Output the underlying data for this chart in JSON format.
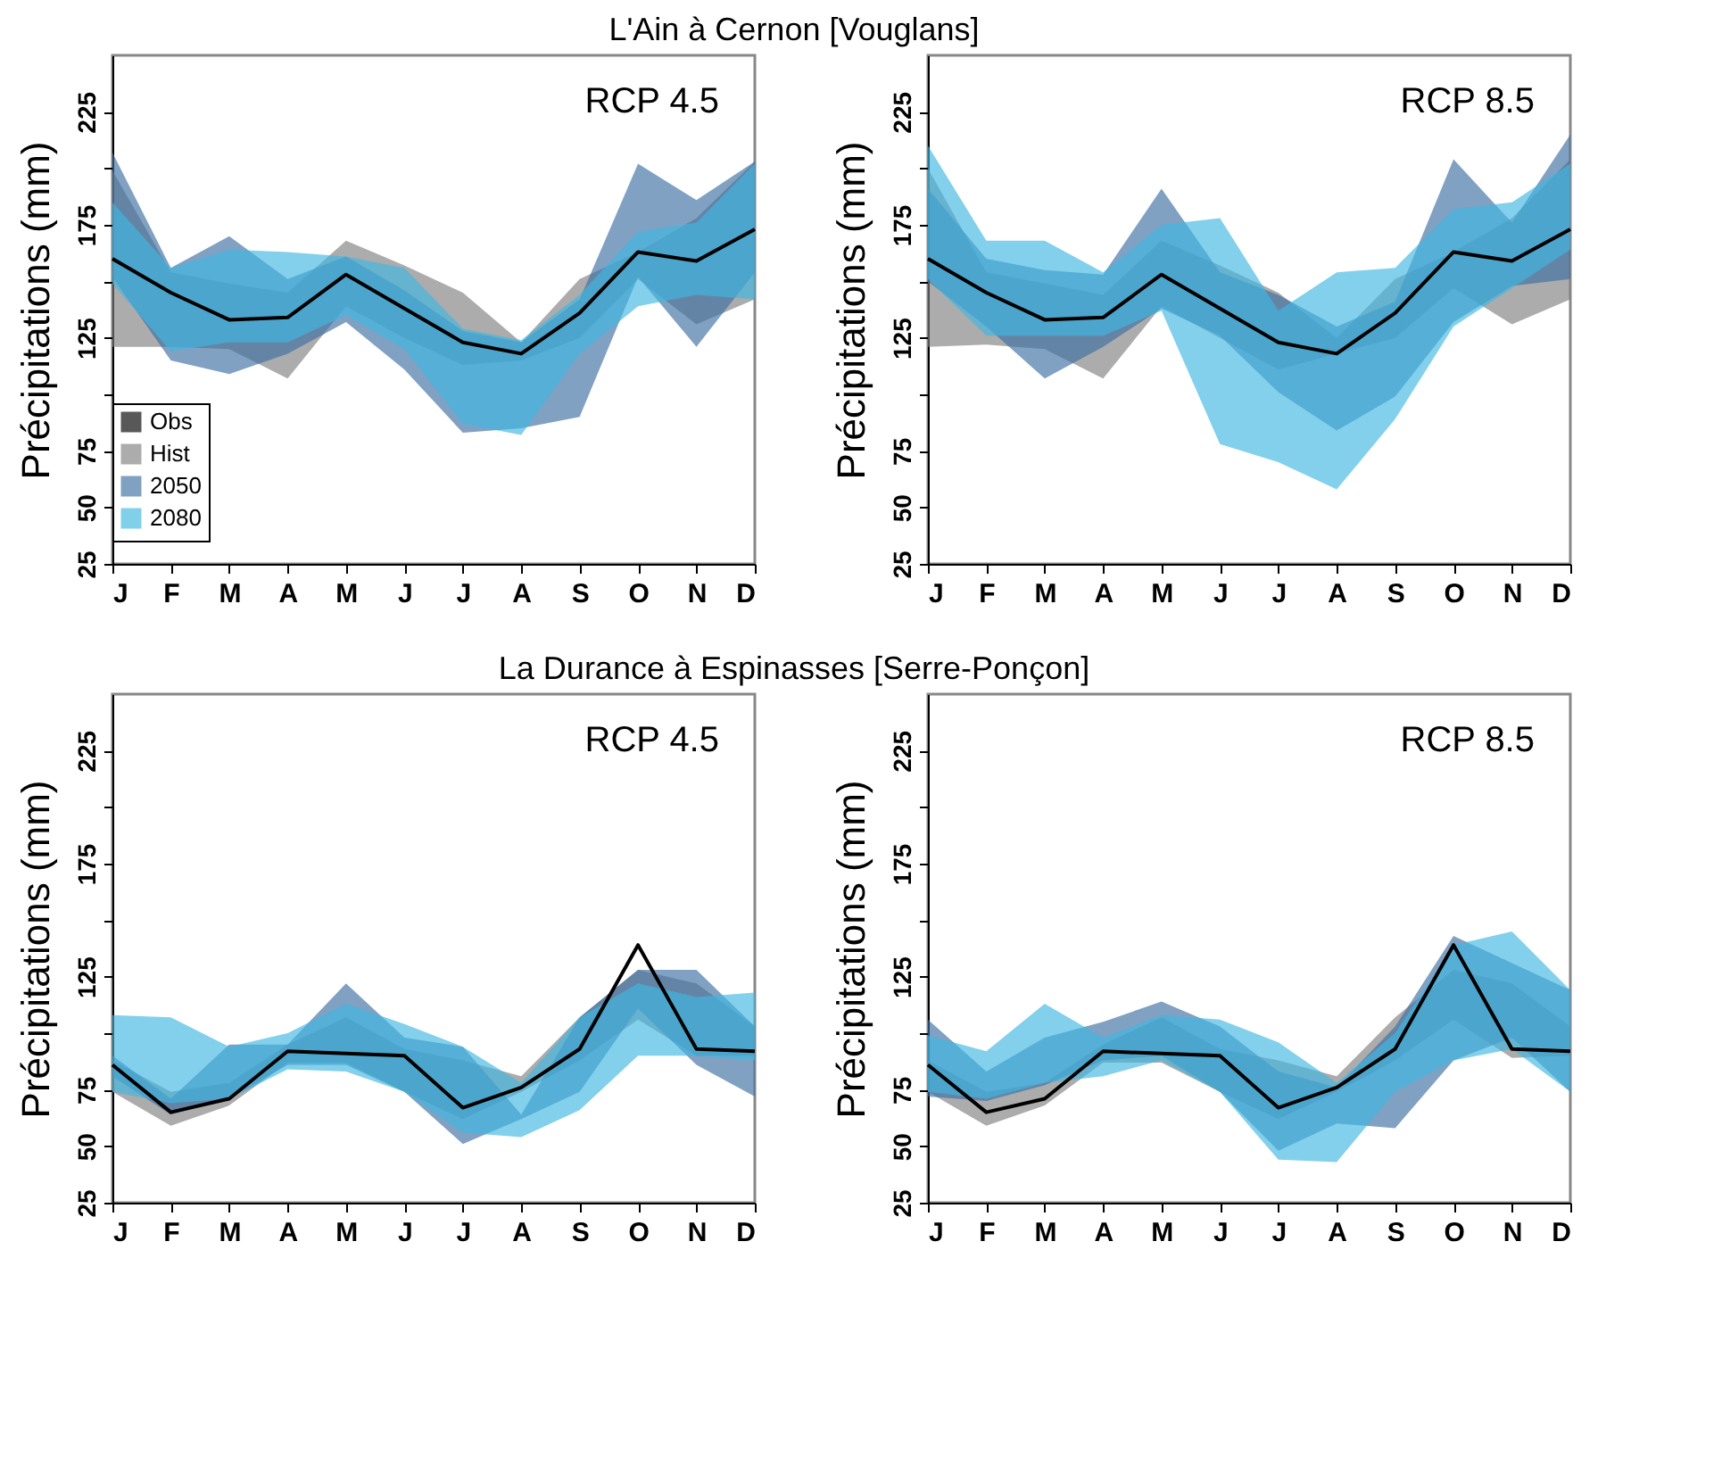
{
  "chart_data": [
    {
      "type": "line",
      "title": "L'Ain à Cernon [Vouglans]",
      "ylabel": "Précipitations (mm)",
      "categories": [
        "J",
        "F",
        "M",
        "A",
        "M",
        "J",
        "J",
        "A",
        "S",
        "O",
        "N",
        "D"
      ],
      "ylim": [
        25,
        250
      ],
      "yticks": [
        25,
        50,
        75,
        {
          "value": 100,
          "label": null
        },
        125,
        {
          "value": 150,
          "label": null
        },
        175,
        {
          "value": 200,
          "label": null
        },
        225
      ],
      "annotations": [
        "RCP 4.5"
      ],
      "legend": "bottom left",
      "series": [
        {
          "name": "Obs",
          "color": "#000000",
          "values": [
            160,
            145,
            133,
            134,
            153,
            138,
            123,
            118,
            136,
            163,
            159,
            173
          ]
        },
        {
          "name": "Hist",
          "type": "area",
          "color": "#808080",
          "values": [
            null,
            null,
            null,
            null,
            null,
            null,
            null,
            null,
            null,
            null,
            null,
            null
          ],
          "lower": [
            121,
            121,
            120,
            107,
            139,
            125,
            113,
            115,
            125,
            151,
            131,
            142
          ],
          "upper": [
            199,
            154,
            149,
            145,
            168,
            157,
            145,
            123,
            151,
            163,
            178,
            203
          ]
        },
        {
          "name": "2050",
          "type": "area",
          "color": "#3e6fa3",
          "values": [
            null,
            null,
            null,
            null,
            null,
            null,
            null,
            null,
            null,
            null,
            null,
            null
          ],
          "lower": [
            152,
            115,
            109,
            118,
            132,
            111,
            83,
            85,
            90,
            152,
            121,
            154
          ],
          "upper": [
            207,
            156,
            170,
            151,
            161,
            146,
            128,
            123,
            142,
            202,
            186,
            203
          ]
        },
        {
          "name": "2080",
          "type": "area",
          "color": "#3fb7e0",
          "values": [
            null,
            null,
            null,
            null,
            null,
            null,
            null,
            null,
            null,
            null,
            null,
            null
          ],
          "lower": [
            149,
            119,
            123,
            123,
            135,
            120,
            87,
            82,
            118,
            139,
            144,
            142
          ],
          "upper": [
            185,
            156,
            164,
            163,
            161,
            156,
            129,
            124,
            144,
            172,
            176,
            202
          ]
        }
      ]
    },
    {
      "type": "line",
      "ylabel": "Précipitations (mm)",
      "categories": [
        "J",
        "F",
        "M",
        "A",
        "M",
        "J",
        "J",
        "A",
        "S",
        "O",
        "N",
        "D"
      ],
      "ylim": [
        25,
        250
      ],
      "yticks": [
        25,
        50,
        75,
        {
          "value": 100,
          "label": null
        },
        125,
        {
          "value": 150,
          "label": null
        },
        175,
        {
          "value": 200,
          "label": null
        },
        225
      ],
      "annotations": [
        "RCP 8.5"
      ],
      "series": [
        {
          "color": "#000000",
          "values": [
            160,
            145,
            133,
            134,
            153,
            138,
            123,
            118,
            136,
            163,
            159,
            173
          ]
        },
        {
          "type": "area",
          "color": "#808080",
          "values": [
            null,
            null,
            null,
            null,
            null,
            null,
            null,
            null,
            null,
            null,
            null,
            null
          ],
          "lower": [
            121,
            122,
            120,
            107,
            139,
            125,
            111,
            118,
            125,
            147,
            131,
            142
          ],
          "upper": [
            200,
            154,
            149,
            144,
            168,
            157,
            145,
            125,
            151,
            163,
            178,
            204
          ]
        },
        {
          "type": "area",
          "color": "#3e6fa3",
          "values": [
            null,
            null,
            null,
            null,
            null,
            null,
            null,
            null,
            null,
            null,
            null,
            null
          ],
          "lower": [
            150,
            130,
            107,
            121,
            138,
            126,
            101,
            84,
            99,
            132,
            148,
            151
          ],
          "upper": [
            191,
            160,
            155,
            153,
            191,
            154,
            144,
            130,
            141,
            204,
            176,
            215
          ]
        },
        {
          "type": "area",
          "color": "#3fb7e0",
          "values": [
            null,
            null,
            null,
            null,
            null,
            null,
            null,
            null,
            null,
            null,
            null,
            null
          ],
          "lower": [
            151,
            126,
            126,
            126,
            137,
            78,
            70,
            58,
            89,
            130,
            147,
            164
          ],
          "upper": [
            210,
            168,
            168,
            154,
            175,
            178,
            137,
            154,
            156,
            182,
            185,
            202
          ]
        }
      ]
    },
    {
      "type": "line",
      "title": "La Durance à Espinasses [Serre-Ponçon]",
      "ylabel": "Précipitations (mm)",
      "categories": [
        "J",
        "F",
        "M",
        "A",
        "M",
        "J",
        "J",
        "A",
        "S",
        "O",
        "N",
        "D"
      ],
      "ylim": [
        25,
        250
      ],
      "yticks": [
        25,
        50,
        75,
        {
          "value": 100,
          "label": null
        },
        125,
        {
          "value": 150,
          "label": null
        },
        175,
        {
          "value": 200,
          "label": null
        },
        225
      ],
      "annotations": [
        "RCP 4.5"
      ],
      "series": [
        {
          "color": "#000000",
          "values": [
            86,
            65,
            71,
            92,
            91,
            90,
            67,
            76,
            93,
            139,
            93,
            92
          ]
        },
        {
          "type": "area",
          "color": "#808080",
          "values": [
            null,
            null,
            null,
            null,
            null,
            null,
            null,
            null,
            null,
            null,
            null,
            null
          ],
          "lower": [
            74,
            59,
            68,
            87,
            87,
            74,
            62,
            74,
            88,
            106,
            90,
            90
          ],
          "upper": [
            88,
            74,
            78,
            95,
            107,
            93,
            88,
            81,
            107,
            128,
            122,
            103
          ]
        },
        {
          "type": "area",
          "color": "#3e6fa3",
          "values": [
            null,
            null,
            null,
            null,
            null,
            null,
            null,
            null,
            null,
            null,
            null,
            null
          ],
          "lower": [
            81,
            64,
            71,
            86,
            86,
            74,
            51,
            62,
            74,
            111,
            86,
            72
          ],
          "upper": [
            90,
            71,
            95,
            95,
            122,
            98,
            94,
            64,
            107,
            128,
            128,
            103
          ]
        },
        {
          "type": "area",
          "color": "#3fb7e0",
          "values": [
            null,
            null,
            null,
            null,
            null,
            null,
            null,
            null,
            null,
            null,
            null,
            null
          ],
          "lower": [
            74,
            69,
            71,
            84,
            83,
            74,
            56,
            54,
            66,
            90,
            90,
            88
          ],
          "upper": [
            108,
            107,
            94,
            100,
            113,
            104,
            94,
            78,
            107,
            122,
            116,
            118
          ]
        }
      ]
    },
    {
      "type": "line",
      "ylabel": "Précipitations (mm)",
      "categories": [
        "J",
        "F",
        "M",
        "A",
        "M",
        "J",
        "J",
        "A",
        "S",
        "O",
        "N",
        "D"
      ],
      "ylim": [
        25,
        250
      ],
      "yticks": [
        25,
        50,
        75,
        {
          "value": 100,
          "label": null
        },
        125,
        {
          "value": 150,
          "label": null
        },
        175,
        {
          "value": 200,
          "label": null
        },
        225
      ],
      "annotations": [
        "RCP 8.5"
      ],
      "series": [
        {
          "color": "#000000",
          "values": [
            86,
            65,
            71,
            92,
            91,
            90,
            67,
            76,
            93,
            139,
            93,
            92
          ]
        },
        {
          "type": "area",
          "color": "#808080",
          "values": [
            null,
            null,
            null,
            null,
            null,
            null,
            null,
            null,
            null,
            null,
            null,
            null
          ],
          "lower": [
            74,
            59,
            68,
            87,
            87,
            74,
            62,
            74,
            88,
            106,
            89,
            90
          ],
          "upper": [
            88,
            74,
            78,
            95,
            107,
            93,
            88,
            81,
            107,
            128,
            122,
            103
          ]
        },
        {
          "type": "area",
          "color": "#3e6fa3",
          "values": [
            null,
            null,
            null,
            null,
            null,
            null,
            null,
            null,
            null,
            null,
            null,
            null
          ],
          "lower": [
            72,
            70,
            77,
            88,
            90,
            74,
            48,
            60,
            58,
            88,
            98,
            74
          ],
          "upper": [
            106,
            83,
            98,
            105,
            114,
            103,
            83,
            76,
            103,
            143,
            131,
            119
          ]
        },
        {
          "type": "area",
          "color": "#3fb7e0",
          "values": [
            null,
            null,
            null,
            null,
            null,
            null,
            null,
            null,
            null,
            null,
            null,
            null
          ],
          "lower": [
            74,
            71,
            78,
            81,
            88,
            74,
            44,
            43,
            74,
            88,
            93,
            74
          ],
          "upper": [
            99,
            92,
            113,
            98,
            108,
            106,
            96,
            78,
            100,
            139,
            145,
            119
          ]
        }
      ]
    }
  ]
}
